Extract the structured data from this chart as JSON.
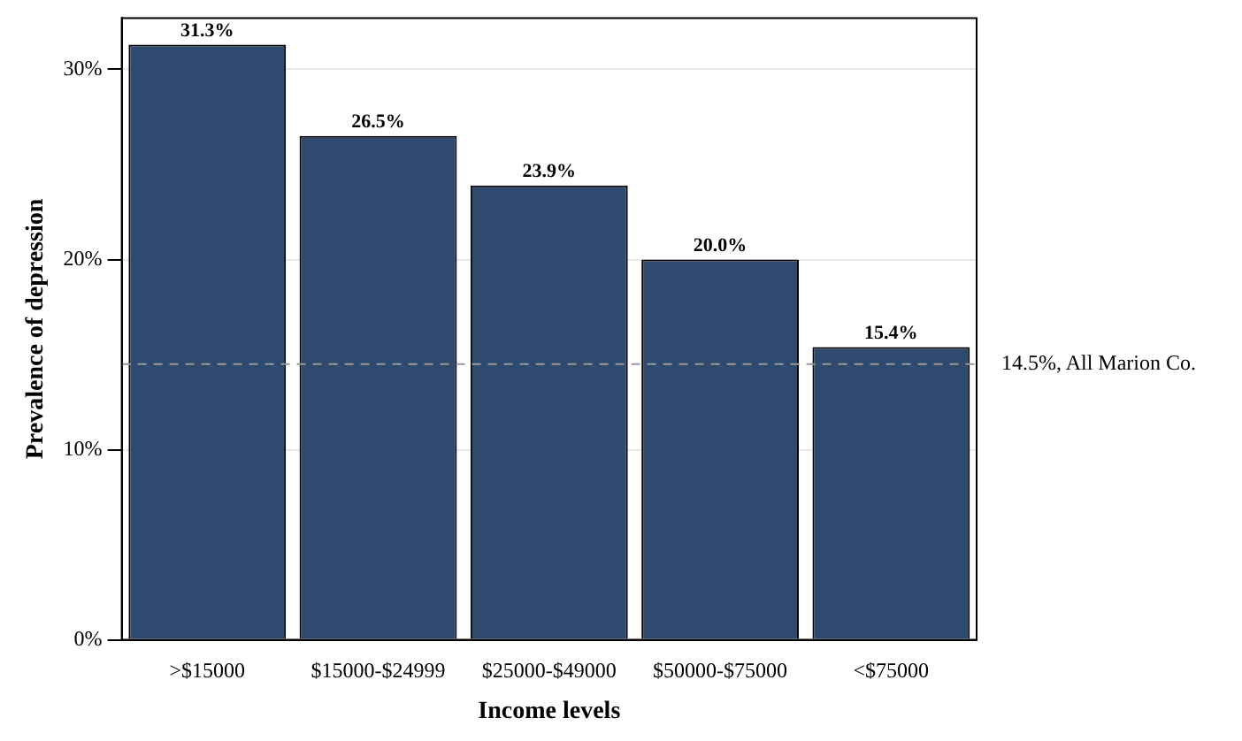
{
  "chart_data": {
    "type": "bar",
    "xlabel": "Income levels",
    "ylabel": "Prevalence of depression",
    "categories": [
      ">$15000",
      "$15000-$24999",
      "$25000-$49000",
      "$50000-$75000",
      "<$75000"
    ],
    "values": [
      31.3,
      26.5,
      23.9,
      20.0,
      15.4
    ],
    "value_labels": [
      "31.3%",
      "26.5%",
      "23.9%",
      "20.0%",
      "15.4%"
    ],
    "color": "#2e4a6e",
    "ylim": [
      0,
      32.7
    ],
    "yticks": [
      {
        "value": 0,
        "label": "0%"
      },
      {
        "value": 10,
        "label": "10%"
      },
      {
        "value": 20,
        "label": "20%"
      },
      {
        "value": 30,
        "label": "30%"
      }
    ],
    "grid": "y",
    "ref_lines": [
      {
        "axis": "y",
        "value": 14.5,
        "label": "14.5%, All Marion Co.",
        "color": "#999999",
        "line_style": "dashed"
      }
    ]
  }
}
